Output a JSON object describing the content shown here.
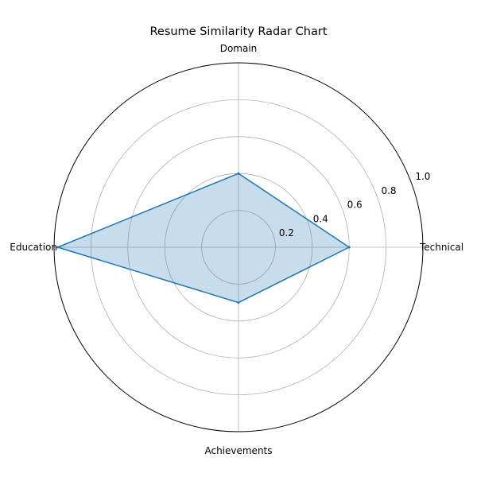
{
  "chart_data": {
    "type": "radar",
    "title": "Resume Similarity Radar Chart",
    "categories": [
      "Technical",
      "Domain",
      "Education",
      "Achievements"
    ],
    "series": [
      {
        "values": [
          0.6,
          0.4,
          0.98,
          0.3
        ]
      }
    ],
    "rlim": [
      0,
      1.0
    ],
    "r_ticks": [
      0.2,
      0.4,
      0.6,
      0.8,
      1.0
    ],
    "r_tick_labels": [
      "0.2",
      "0.4",
      "0.6",
      "0.8",
      "1.0"
    ],
    "grid": true,
    "colors": {
      "line": "#1f77b4",
      "fill": "#1f77b4"
    }
  }
}
